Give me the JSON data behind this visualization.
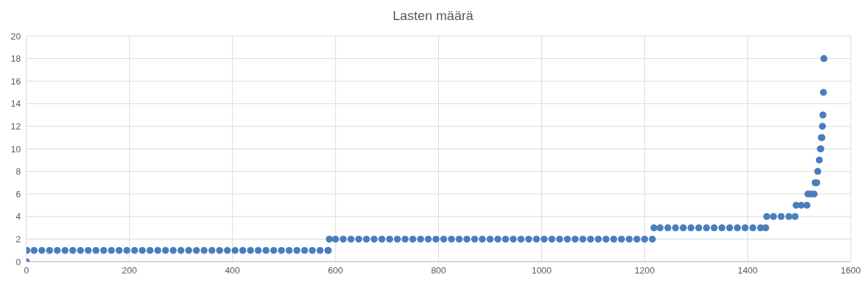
{
  "chart_data": {
    "type": "scatter",
    "title": "Lasten määrä",
    "color": "#4a7ebb",
    "marker": "circle",
    "grid": true,
    "xlim": [
      0,
      1600
    ],
    "xticks": [
      0,
      200,
      400,
      600,
      800,
      1000,
      1200,
      1400,
      1600
    ],
    "ylim": [
      0,
      20
    ],
    "yticks": [
      0,
      2,
      4,
      6,
      8,
      10,
      12,
      14,
      16,
      18,
      20
    ],
    "x": [
      0,
      1,
      15,
      30,
      45,
      60,
      75,
      90,
      105,
      120,
      135,
      150,
      165,
      180,
      195,
      210,
      225,
      240,
      255,
      270,
      285,
      300,
      315,
      330,
      345,
      360,
      375,
      390,
      405,
      420,
      435,
      450,
      465,
      480,
      495,
      510,
      525,
      540,
      555,
      570,
      585,
      586,
      588,
      600,
      615,
      630,
      645,
      660,
      675,
      690,
      705,
      720,
      735,
      750,
      765,
      780,
      795,
      810,
      825,
      840,
      855,
      870,
      885,
      900,
      915,
      930,
      945,
      960,
      975,
      990,
      1005,
      1020,
      1035,
      1050,
      1065,
      1080,
      1095,
      1110,
      1125,
      1140,
      1155,
      1170,
      1185,
      1200,
      1215,
      1218,
      1230,
      1245,
      1260,
      1275,
      1290,
      1305,
      1320,
      1335,
      1350,
      1365,
      1380,
      1395,
      1410,
      1425,
      1435,
      1437,
      1450,
      1465,
      1480,
      1492,
      1494,
      1504,
      1515,
      1517,
      1523,
      1529,
      1531,
      1534,
      1536,
      1539,
      1541,
      1542,
      1543,
      1544,
      1545,
      1546,
      1547,
      1548
    ],
    "values": [
      0,
      1,
      1,
      1,
      1,
      1,
      1,
      1,
      1,
      1,
      1,
      1,
      1,
      1,
      1,
      1,
      1,
      1,
      1,
      1,
      1,
      1,
      1,
      1,
      1,
      1,
      1,
      1,
      1,
      1,
      1,
      1,
      1,
      1,
      1,
      1,
      1,
      1,
      1,
      1,
      1,
      1,
      2,
      2,
      2,
      2,
      2,
      2,
      2,
      2,
      2,
      2,
      2,
      2,
      2,
      2,
      2,
      2,
      2,
      2,
      2,
      2,
      2,
      2,
      2,
      2,
      2,
      2,
      2,
      2,
      2,
      2,
      2,
      2,
      2,
      2,
      2,
      2,
      2,
      2,
      2,
      2,
      2,
      2,
      2,
      3,
      3,
      3,
      3,
      3,
      3,
      3,
      3,
      3,
      3,
      3,
      3,
      3,
      3,
      3,
      3,
      4,
      4,
      4,
      4,
      4,
      5,
      5,
      5,
      6,
      6,
      6,
      7,
      7,
      8,
      9,
      10,
      10,
      11,
      11,
      12,
      13,
      15,
      18
    ]
  }
}
